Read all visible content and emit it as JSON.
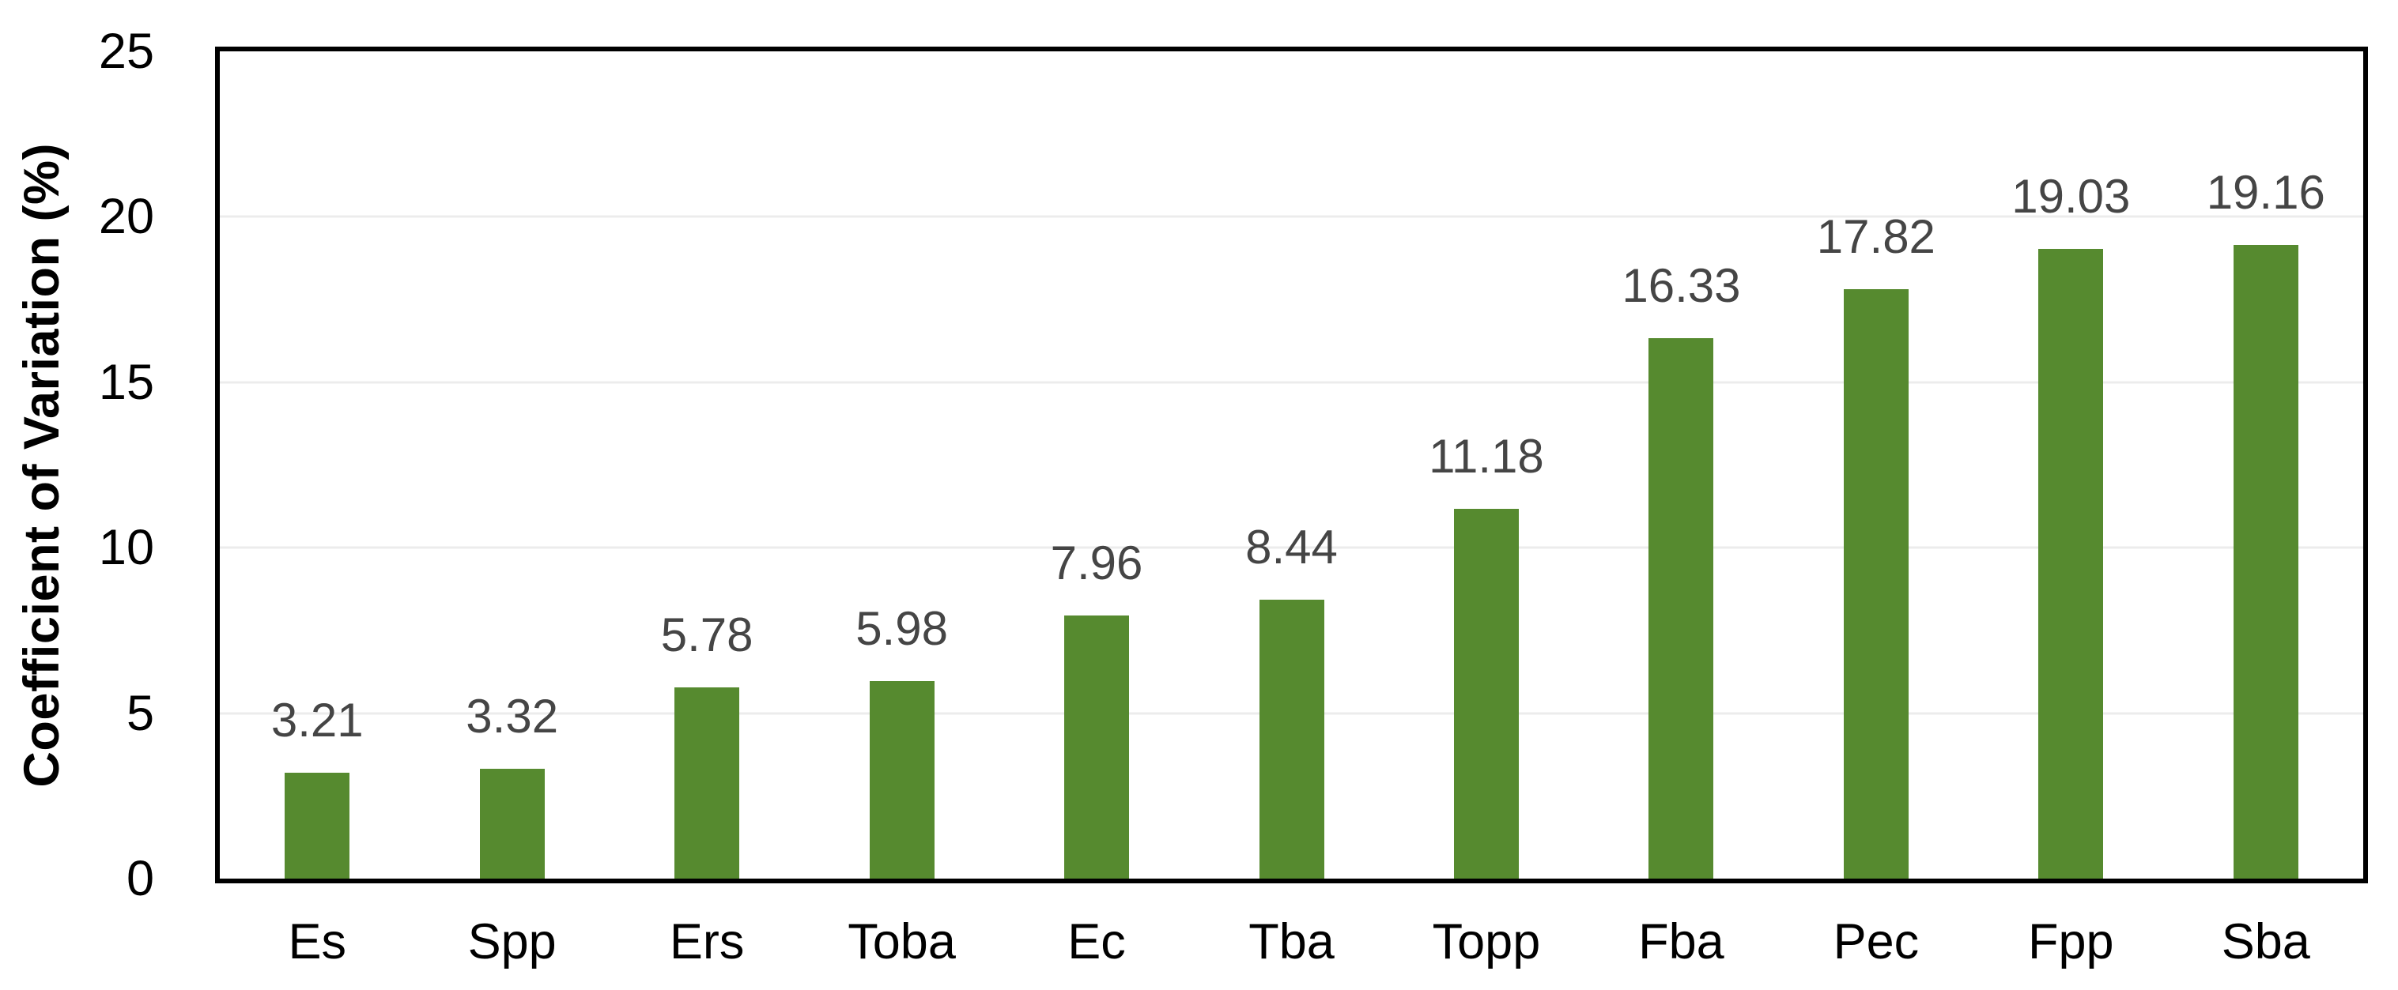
{
  "chart_data": {
    "type": "bar",
    "title": "",
    "xlabel": "",
    "ylabel": "Coefficient of Variation (%)",
    "categories": [
      "Es",
      "Spp",
      "Ers",
      "Toba",
      "Ec",
      "Tba",
      "Topp",
      "Fba",
      "Pec",
      "Fpp",
      "Sba"
    ],
    "values": [
      3.21,
      3.32,
      5.78,
      5.98,
      7.96,
      8.44,
      11.18,
      16.33,
      17.82,
      19.03,
      19.16
    ],
    "value_labels": [
      "3.21",
      "3.32",
      "5.78",
      "5.98",
      "7.96",
      "8.44",
      "11.18",
      "16.33",
      "17.82",
      "19.03",
      "19.16"
    ],
    "ylim": [
      0,
      25
    ],
    "yticks": [
      0,
      5,
      10,
      15,
      20,
      25
    ],
    "grid": "horizontal-light",
    "legend": "none",
    "colors": {
      "bar": "#568A2F",
      "value_label": "#454545",
      "gridline": "#ececec",
      "axis": "#000000",
      "tick_text": "#000000"
    }
  }
}
